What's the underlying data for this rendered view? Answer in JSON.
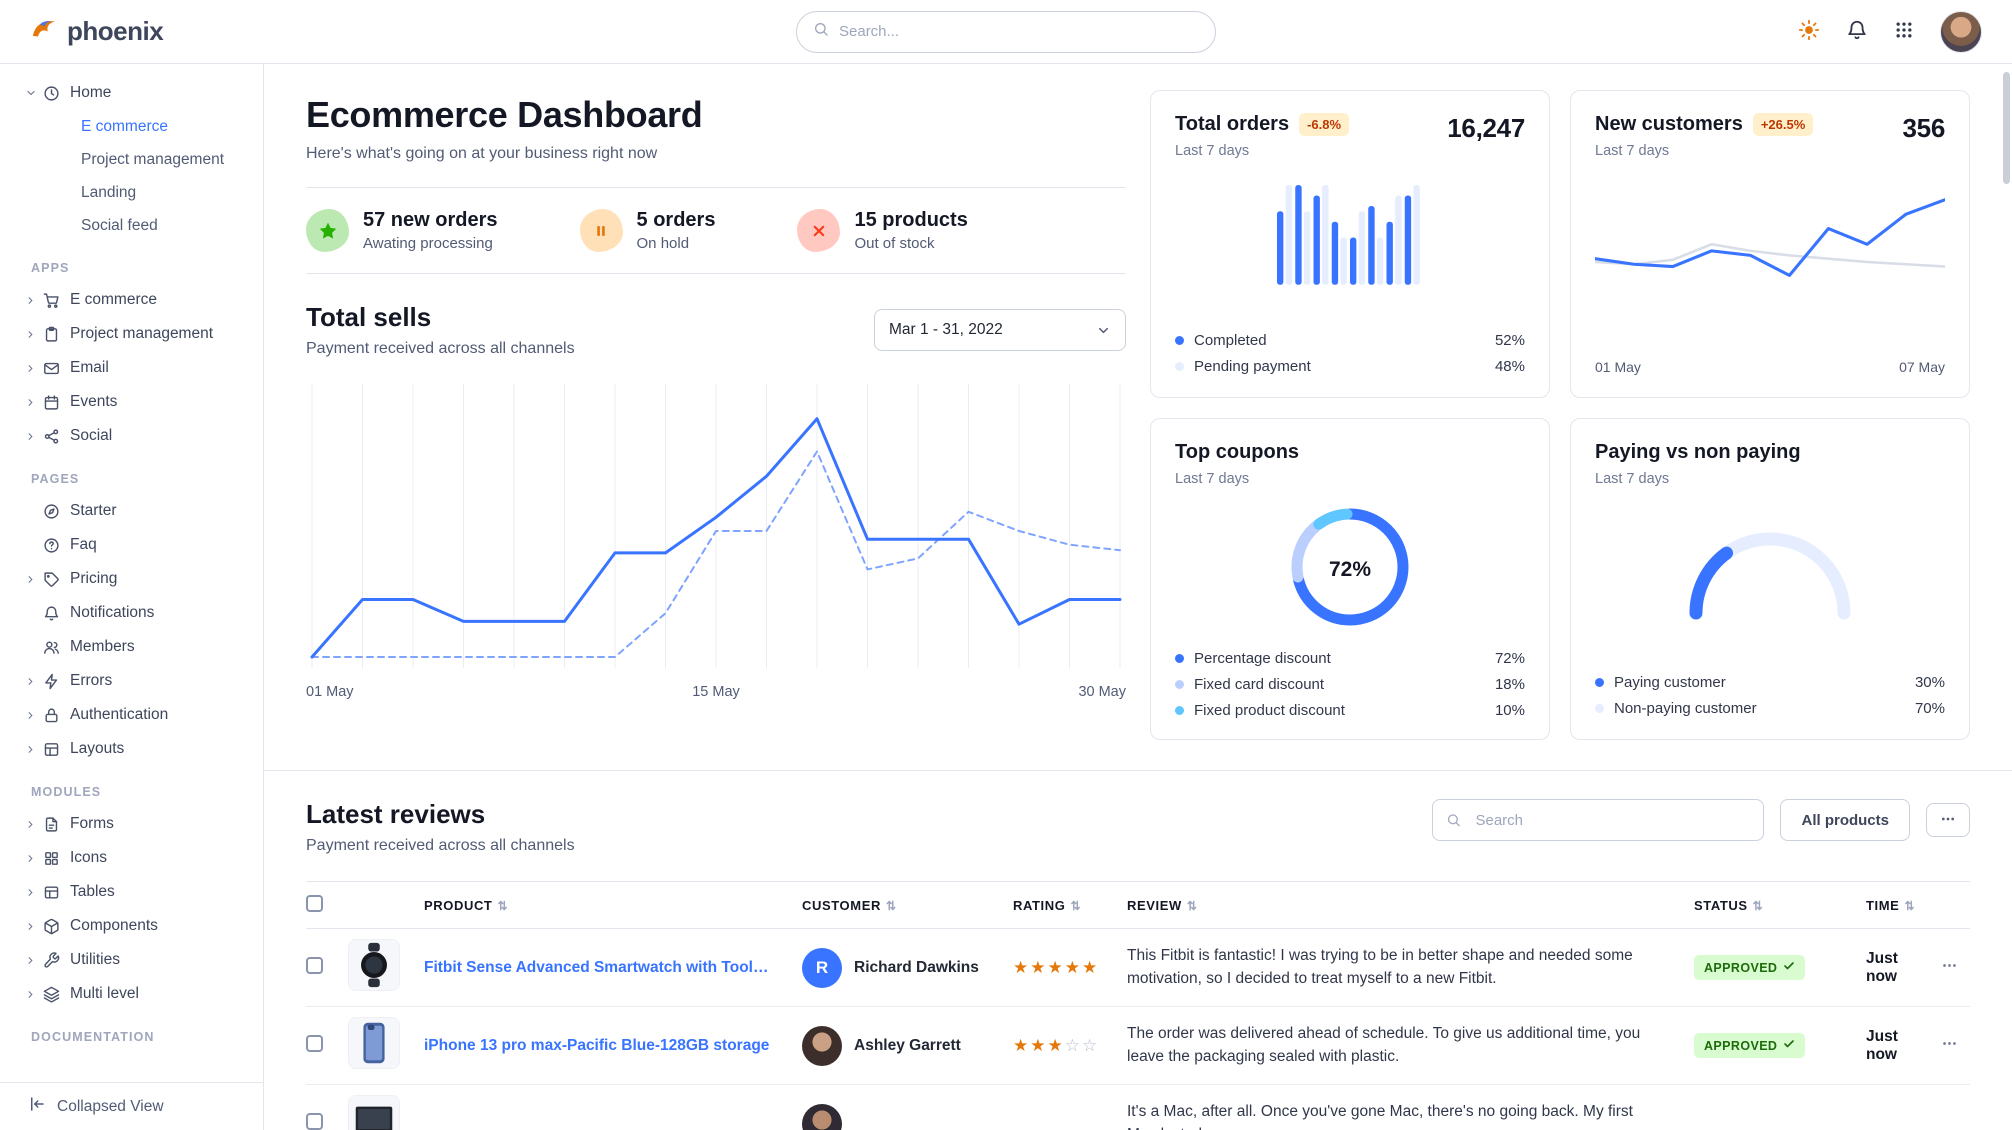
{
  "navbar": {
    "brand": "phoenix",
    "search_placeholder": "Search...",
    "icons": [
      "sun-icon",
      "bell-icon",
      "grid-icon",
      "user-avatar"
    ]
  },
  "colors": {
    "primary": "#3874ff",
    "warning_badge_bg": "#ffefca",
    "warning_badge_text": "#bc3803",
    "success_badge_bg": "#d9fbd0",
    "success_badge_text": "#1c6c09",
    "star": "#e5780b"
  },
  "sidebar": {
    "home": {
      "label": "Home",
      "icon": "clock",
      "children": [
        {
          "label": "E commerce",
          "active": true
        },
        {
          "label": "Project management",
          "active": false
        },
        {
          "label": "Landing",
          "active": false
        },
        {
          "label": "Social feed",
          "active": false
        }
      ]
    },
    "sections": [
      {
        "title": "APPS",
        "items": [
          {
            "label": "E commerce",
            "icon": "cart",
            "expandable": true
          },
          {
            "label": "Project management",
            "icon": "clipboard",
            "expandable": true
          },
          {
            "label": "Email",
            "icon": "mail",
            "expandable": true
          },
          {
            "label": "Events",
            "icon": "calendar",
            "expandable": true
          },
          {
            "label": "Social",
            "icon": "share",
            "expandable": true
          }
        ]
      },
      {
        "title": "PAGES",
        "items": [
          {
            "label": "Starter",
            "icon": "compass",
            "expandable": false
          },
          {
            "label": "Faq",
            "icon": "help",
            "expandable": false
          },
          {
            "label": "Pricing",
            "icon": "tag",
            "expandable": true
          },
          {
            "label": "Notifications",
            "icon": "bell",
            "expandable": false
          },
          {
            "label": "Members",
            "icon": "users",
            "expandable": false
          },
          {
            "label": "Errors",
            "icon": "zap",
            "expandable": true
          },
          {
            "label": "Authentication",
            "icon": "lock",
            "expandable": true
          },
          {
            "label": "Layouts",
            "icon": "layout",
            "expandable": true
          }
        ]
      },
      {
        "title": "MODULES",
        "items": [
          {
            "label": "Forms",
            "icon": "file",
            "expandable": true
          },
          {
            "label": "Icons",
            "icon": "grid",
            "expandable": true
          },
          {
            "label": "Tables",
            "icon": "table",
            "expandable": true
          },
          {
            "label": "Components",
            "icon": "box",
            "expandable": true
          },
          {
            "label": "Utilities",
            "icon": "tool",
            "expandable": true
          },
          {
            "label": "Multi level",
            "icon": "layers",
            "expandable": true
          }
        ]
      },
      {
        "title": "DOCUMENTATION",
        "items": []
      }
    ],
    "collapsed_view": "Collapsed View"
  },
  "header": {
    "title": "Ecommerce Dashboard",
    "subtitle": "Here's what's going on at your business right now"
  },
  "stats": [
    {
      "value": "57 new orders",
      "caption": "Awating processing",
      "icon": "star",
      "icon_bg": "#bce8b2",
      "icon_color": "#25b003"
    },
    {
      "value": "5 orders",
      "caption": "On hold",
      "icon": "pause",
      "icon_bg": "#ffe0b7",
      "icon_color": "#e5780b"
    },
    {
      "value": "15 products",
      "caption": "Out of stock",
      "icon": "x",
      "icon_bg": "#ffc9c2",
      "icon_color": "#fa3b1d"
    }
  ],
  "total_sells": {
    "title": "Total sells",
    "subtitle": "Payment received across all channels",
    "date_range": "Mar 1 - 31, 2022"
  },
  "cards": {
    "total_orders": {
      "title": "Total orders",
      "badge": "-6.8%",
      "period": "Last 7 days",
      "value": "16,247"
    },
    "new_customers": {
      "title": "New customers",
      "badge": "+26.5%",
      "period": "Last 7 days",
      "value": "356"
    },
    "top_coupons": {
      "title": "Top coupons",
      "period": "Last 7 days",
      "center_value": "72%"
    },
    "paying": {
      "title": "Paying vs non paying",
      "period": "Last 7 days"
    }
  },
  "reviews": {
    "title": "Latest reviews",
    "subtitle": "Payment received across all channels",
    "search_placeholder": "Search",
    "all_products_label": "All products",
    "columns": [
      "PRODUCT",
      "CUSTOMER",
      "RATING",
      "REVIEW",
      "STATUS",
      "TIME"
    ],
    "rows": [
      {
        "thumb": "watch",
        "product": "Fitbit Sense Advanced Smartwatch with Tools fo...",
        "customer": "Richard Dawkins",
        "avatar_initial": "R",
        "rating": 5,
        "review": "This Fitbit is fantastic! I was trying to be in better shape and needed some motivation, so I decided to treat myself to a new Fitbit.",
        "status": "APPROVED",
        "time": "Just now"
      },
      {
        "thumb": "phone",
        "product": "iPhone 13 pro max-Pacific Blue-128GB storage",
        "customer": "Ashley Garrett",
        "avatar_initial": null,
        "rating": 3,
        "review": "The order was delivered ahead of schedule. To give us additional time, you leave the packaging sealed with plastic.",
        "status": "APPROVED",
        "time": "Just now"
      },
      {
        "thumb": "laptop",
        "product": "",
        "customer": "",
        "avatar_initial": null,
        "rating": null,
        "review": "It's a Mac, after all. Once you've gone Mac, there's no going back. My first Mac lasted...",
        "status": "",
        "time": ""
      }
    ]
  },
  "chart_data": [
    {
      "id": "total_sells",
      "type": "line",
      "title": "Total sells",
      "x_ticks": [
        "01 May",
        "15 May",
        "30 May"
      ],
      "grid": "vertical",
      "ylim": [
        0,
        100
      ],
      "series": [
        {
          "name": "current",
          "style": "solid",
          "color": "#3874ff",
          "values": [
            4,
            25,
            25,
            17,
            17,
            17,
            42,
            42,
            55,
            70,
            91,
            47,
            47,
            47,
            16,
            25,
            25
          ]
        },
        {
          "name": "previous",
          "style": "dashed",
          "color": "#7fa4ff",
          "values": [
            4,
            4,
            4,
            4,
            4,
            4,
            4,
            20,
            50,
            50,
            79,
            36,
            40,
            57,
            50,
            45,
            43
          ]
        }
      ]
    },
    {
      "id": "total_orders",
      "type": "bar",
      "series": [
        {
          "name": "Completed",
          "color": "#3874ff",
          "values": [
            70,
            95,
            85,
            60,
            45,
            75,
            60,
            85
          ]
        },
        {
          "name": "Pending payment",
          "color": "#e5edff",
          "values": [
            95,
            70,
            95,
            45,
            70,
            45,
            85,
            95
          ]
        }
      ],
      "legend": [
        {
          "label": "Completed",
          "value": 52,
          "color": "#3874ff"
        },
        {
          "label": "Pending payment",
          "value": 48,
          "color": "#e5edff"
        }
      ]
    },
    {
      "id": "new_customers",
      "type": "line",
      "x_ticks": [
        "01 May",
        "07 May"
      ],
      "series": [
        {
          "name": "new customers",
          "color": "#3874ff",
          "values": [
            45,
            40,
            38,
            52,
            48,
            30,
            72,
            58,
            85,
            98
          ]
        },
        {
          "name": "baseline",
          "color": "#d8dde6",
          "values": [
            42,
            40,
            44,
            58,
            52,
            48,
            45,
            42,
            40,
            38
          ]
        }
      ]
    },
    {
      "id": "top_coupons",
      "type": "pie",
      "center_label": "72%",
      "slices": [
        {
          "label": "Percentage discount",
          "value": 72,
          "color": "#3874ff"
        },
        {
          "label": "Fixed card discount",
          "value": 18,
          "color": "#bbcfff"
        },
        {
          "label": "Fixed product discount",
          "value": 10,
          "color": "#5fc6ff"
        }
      ]
    },
    {
      "id": "paying_gauge",
      "type": "gauge",
      "slices": [
        {
          "label": "Paying customer",
          "value": 30,
          "color": "#3874ff"
        },
        {
          "label": "Non-paying customer",
          "value": 70,
          "color": "#e5edff"
        }
      ]
    }
  ]
}
